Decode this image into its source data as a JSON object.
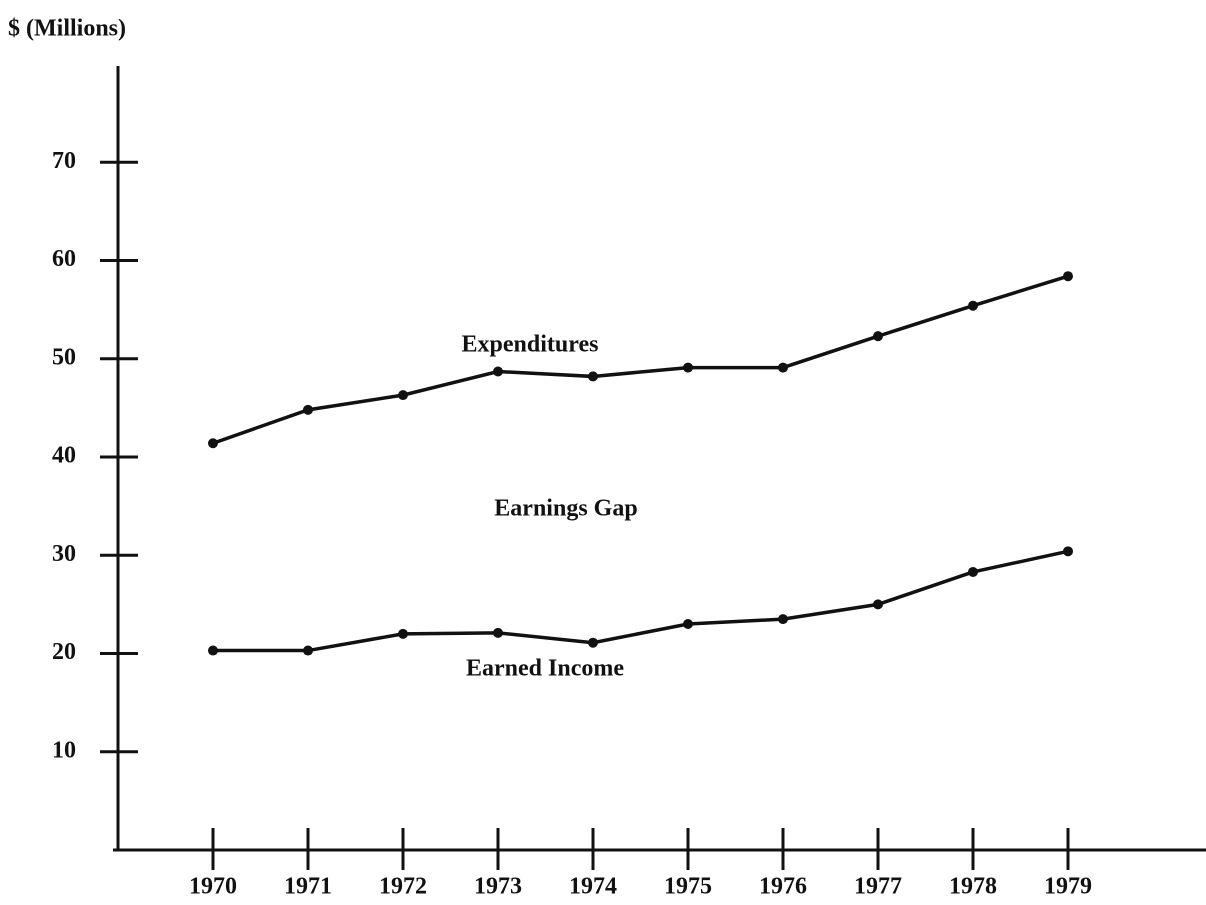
{
  "chart_data": {
    "type": "line",
    "y_label": "$ (Millions)",
    "annotation": "Earnings Gap",
    "categories": [
      "1970",
      "1971",
      "1972",
      "1973",
      "1974",
      "1975",
      "1976",
      "1977",
      "1978",
      "1979"
    ],
    "series": [
      {
        "name": "Expenditures",
        "color": "#111111",
        "values": [
          41.4,
          44.8,
          46.3,
          48.7,
          48.2,
          49.1,
          49.1,
          52.3,
          55.4,
          58.4
        ]
      },
      {
        "name": "Earned Income",
        "color": "#111111",
        "values": [
          20.3,
          20.3,
          22.0,
          22.1,
          21.1,
          23.0,
          23.5,
          25.0,
          28.3,
          30.4
        ]
      }
    ],
    "ylim": [
      0,
      80
    ],
    "yticks": [
      10,
      20,
      30,
      40,
      50,
      60,
      70
    ],
    "grid": false
  }
}
